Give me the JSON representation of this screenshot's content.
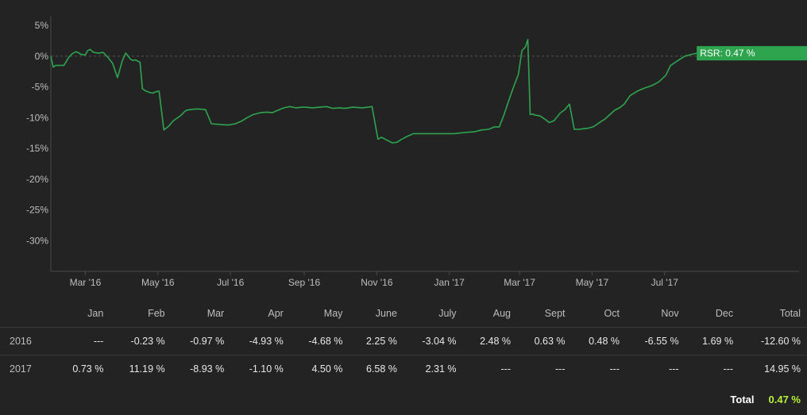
{
  "chart_data": {
    "type": "line",
    "series": [
      {
        "x": [
          "2016-02-01",
          "2016-02-03",
          "2016-02-05",
          "2016-02-08",
          "2016-02-12",
          "2016-02-16",
          "2016-02-19",
          "2016-02-22",
          "2016-02-24",
          "2016-02-26",
          "2016-03-01",
          "2016-03-03",
          "2016-03-05",
          "2016-03-08",
          "2016-03-12",
          "2016-03-16",
          "2016-03-20",
          "2016-03-24",
          "2016-03-28",
          "2016-04-01",
          "2016-04-04",
          "2016-04-06",
          "2016-04-08",
          "2016-04-10",
          "2016-04-12",
          "2016-04-14",
          "2016-04-16",
          "2016-04-18",
          "2016-04-21",
          "2016-04-24",
          "2016-04-27",
          "2016-04-29",
          "2016-05-02",
          "2016-05-06",
          "2016-05-10",
          "2016-05-14",
          "2016-05-20",
          "2016-05-23",
          "2016-05-25",
          "2016-05-28",
          "2016-06-01",
          "2016-06-05",
          "2016-06-10",
          "2016-06-15",
          "2016-06-22",
          "2016-06-29",
          "2016-07-05",
          "2016-07-10",
          "2016-07-15",
          "2016-07-20",
          "2016-07-26",
          "2016-08-01",
          "2016-08-05",
          "2016-08-10",
          "2016-08-15",
          "2016-08-20",
          "2016-08-25",
          "2016-08-30",
          "2016-09-02",
          "2016-09-08",
          "2016-09-14",
          "2016-09-20",
          "2016-09-25",
          "2016-10-01",
          "2016-10-05",
          "2016-10-12",
          "2016-10-20",
          "2016-10-28",
          "2016-11-02",
          "2016-11-05",
          "2016-11-10",
          "2016-11-14",
          "2016-11-18",
          "2016-11-22",
          "2016-11-27",
          "2016-12-02",
          "2016-12-08",
          "2016-12-15",
          "2016-12-25",
          "2017-01-05",
          "2017-01-15",
          "2017-01-22",
          "2017-01-28",
          "2017-02-03",
          "2017-02-08",
          "2017-02-12",
          "2017-02-16",
          "2017-02-20",
          "2017-02-24",
          "2017-02-28",
          "2017-03-03",
          "2017-03-06",
          "2017-03-08",
          "2017-03-10",
          "2017-03-12",
          "2017-03-14",
          "2017-03-18",
          "2017-03-22",
          "2017-03-26",
          "2017-03-30",
          "2017-04-04",
          "2017-04-08",
          "2017-04-12",
          "2017-04-16",
          "2017-04-20",
          "2017-04-24",
          "2017-04-28",
          "2017-05-02",
          "2017-05-08",
          "2017-05-12",
          "2017-05-16",
          "2017-05-20",
          "2017-05-24",
          "2017-05-28",
          "2017-06-02",
          "2017-06-08",
          "2017-06-14",
          "2017-06-20",
          "2017-06-26",
          "2017-07-02",
          "2017-07-06",
          "2017-07-10",
          "2017-07-14",
          "2017-07-18",
          "2017-07-24",
          "2017-07-28"
        ],
        "y": [
          0.0,
          -1.8,
          -1.5,
          -1.5,
          -1.5,
          -0.2,
          0.4,
          0.7,
          0.6,
          0.3,
          0.2,
          0.9,
          1.1,
          0.6,
          0.5,
          0.6,
          -0.2,
          -1.2,
          -3.5,
          -0.8,
          0.5,
          0.0,
          -0.5,
          -0.7,
          -0.6,
          -0.8,
          -1.0,
          -5.3,
          -5.7,
          -5.9,
          -6.0,
          -5.8,
          -5.7,
          -12.0,
          -11.4,
          -10.5,
          -9.7,
          -9.1,
          -8.8,
          -8.7,
          -8.6,
          -8.6,
          -8.7,
          -11.0,
          -11.1,
          -11.2,
          -11.0,
          -10.6,
          -10.0,
          -9.5,
          -9.2,
          -9.1,
          -9.2,
          -8.8,
          -8.4,
          -8.2,
          -8.4,
          -8.3,
          -8.3,
          -8.4,
          -8.3,
          -8.2,
          -8.5,
          -8.4,
          -8.5,
          -8.3,
          -8.4,
          -8.2,
          -13.5,
          -13.2,
          -13.7,
          -14.1,
          -14.0,
          -13.5,
          -13.0,
          -12.6,
          -12.6,
          -12.6,
          -12.6,
          -12.6,
          -12.4,
          -12.3,
          -12.0,
          -11.9,
          -11.5,
          -11.5,
          -9.5,
          -7.2,
          -5.0,
          -3.0,
          0.9,
          1.5,
          2.7,
          -9.5,
          -9.4,
          -9.6,
          -9.7,
          -10.2,
          -10.8,
          -10.5,
          -9.3,
          -8.7,
          -7.8,
          -11.9,
          -11.9,
          -11.8,
          -11.7,
          -11.5,
          -10.7,
          -10.2,
          -9.5,
          -8.8,
          -8.4,
          -7.8,
          -6.4,
          -5.7,
          -5.2,
          -4.8,
          -4.2,
          -3.1,
          -1.5,
          -1.0,
          -0.5,
          0.0,
          0.3,
          0.47
        ]
      }
    ],
    "x_ticks": [
      "Mar '16",
      "May '16",
      "Jul '16",
      "Sep '16",
      "Nov '16",
      "Jan '17",
      "Mar '17",
      "May '17",
      "Jul '17"
    ],
    "y_ticks": [
      "5%",
      "0%",
      "-5%",
      "-10%",
      "-15%",
      "-20%",
      "-25%",
      "-30%"
    ],
    "ylim": [
      -35,
      5
    ],
    "xlim": [
      "2016-02-01",
      "2017-10-22"
    ],
    "grid": false,
    "line_color": "#2ea44f",
    "flag": {
      "label": "RSR: 0.47 %",
      "color": "#2ea44f"
    }
  },
  "table": {
    "headers": [
      "",
      "Jan",
      "Feb",
      "Mar",
      "Apr",
      "May",
      "June",
      "July",
      "Aug",
      "Sept",
      "Oct",
      "Nov",
      "Dec",
      "Total"
    ],
    "rows": [
      {
        "year": "2016",
        "cells": [
          {
            "v": "---",
            "s": "dash"
          },
          {
            "v": "-0.23 %",
            "s": "neg"
          },
          {
            "v": "-0.97 %",
            "s": "neg"
          },
          {
            "v": "-4.93 %",
            "s": "neg"
          },
          {
            "v": "-4.68 %",
            "s": "neg"
          },
          {
            "v": "2.25 %",
            "s": "pos"
          },
          {
            "v": "-3.04 %",
            "s": "neg"
          },
          {
            "v": "2.48 %",
            "s": "pos"
          },
          {
            "v": "0.63 %",
            "s": "pos"
          },
          {
            "v": "0.48 %",
            "s": "pos"
          },
          {
            "v": "-6.55 %",
            "s": "neg"
          },
          {
            "v": "1.69 %",
            "s": "pos"
          },
          {
            "v": "-12.60 %",
            "s": "neg"
          }
        ]
      },
      {
        "year": "2017",
        "cells": [
          {
            "v": "0.73 %",
            "s": "pos"
          },
          {
            "v": "11.19 %",
            "s": "pos"
          },
          {
            "v": "-8.93 %",
            "s": "neg"
          },
          {
            "v": "-1.10 %",
            "s": "neg"
          },
          {
            "v": "4.50 %",
            "s": "pos"
          },
          {
            "v": "6.58 %",
            "s": "pos"
          },
          {
            "v": "2.31 %",
            "s": "pos"
          },
          {
            "v": "---",
            "s": "dash"
          },
          {
            "v": "---",
            "s": "dash"
          },
          {
            "v": "---",
            "s": "dash"
          },
          {
            "v": "---",
            "s": "dash"
          },
          {
            "v": "---",
            "s": "dash"
          },
          {
            "v": "14.95 %",
            "s": "pos"
          }
        ]
      }
    ],
    "grand_total_label": "Total",
    "grand_total_value": "0.47 %"
  }
}
